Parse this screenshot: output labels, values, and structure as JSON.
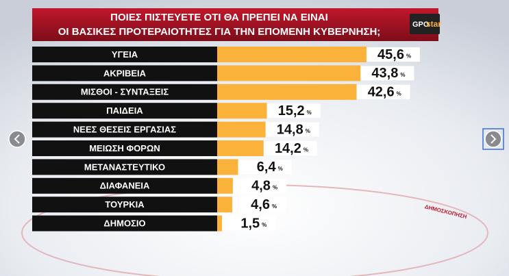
{
  "chart_data": {
    "type": "bar",
    "title": [
      "ΠΟΙΕΣ ΠΙΣΤΕΥΕΤΕ ΟΤΙ ΘΑ ΠΡΕΠΕΙ ΝΑ ΕΙΝΑΙ",
      "ΟΙ ΒΑΣΙΚΕΣ ΠΡΟΤΕΡΑΙΟΤΗΤΕΣ ΓΙΑ ΤΗΝ ΕΠΟΜΕΝΗ ΚΥΒΕΡΝΗΣΗ;"
    ],
    "logo": [
      "GPO",
      "star"
    ],
    "categories": [
      "ΥΓΕΙΑ",
      "ΑΚΡΙΒΕΙΑ",
      "ΜΙΣΘΟΙ - ΣΥΝΤΑΞΕΙΣ",
      "ΠΑΙΔΕΙΑ",
      "ΝΕΕΣ ΘΕΣΕΙΣ ΕΡΓΑΣΙΑΣ",
      "ΜΕΙΩΣΗ ΦΟΡΩΝ",
      "ΜΕΤΑΝΑΣΤΕΥΤΙΚΟ",
      "ΔΙΑΦΑΝΕΙΑ",
      "ΤΟΥΡΚΙΑ",
      "ΔΗΜΟΣΙΟ"
    ],
    "values": [
      45.6,
      43.8,
      42.6,
      15.2,
      14.8,
      14.2,
      6.4,
      4.8,
      4.6,
      1.5
    ],
    "value_labels": [
      "45,6",
      "43,8",
      "42,6",
      "15,2",
      "14,8",
      "14,2",
      "6,4",
      "4,8",
      "4,6",
      "1,5"
    ],
    "unit": "%",
    "color": "#fbb23a",
    "watermark": "ΔΗΜΟΣΚΟΠΗΣΗ"
  }
}
